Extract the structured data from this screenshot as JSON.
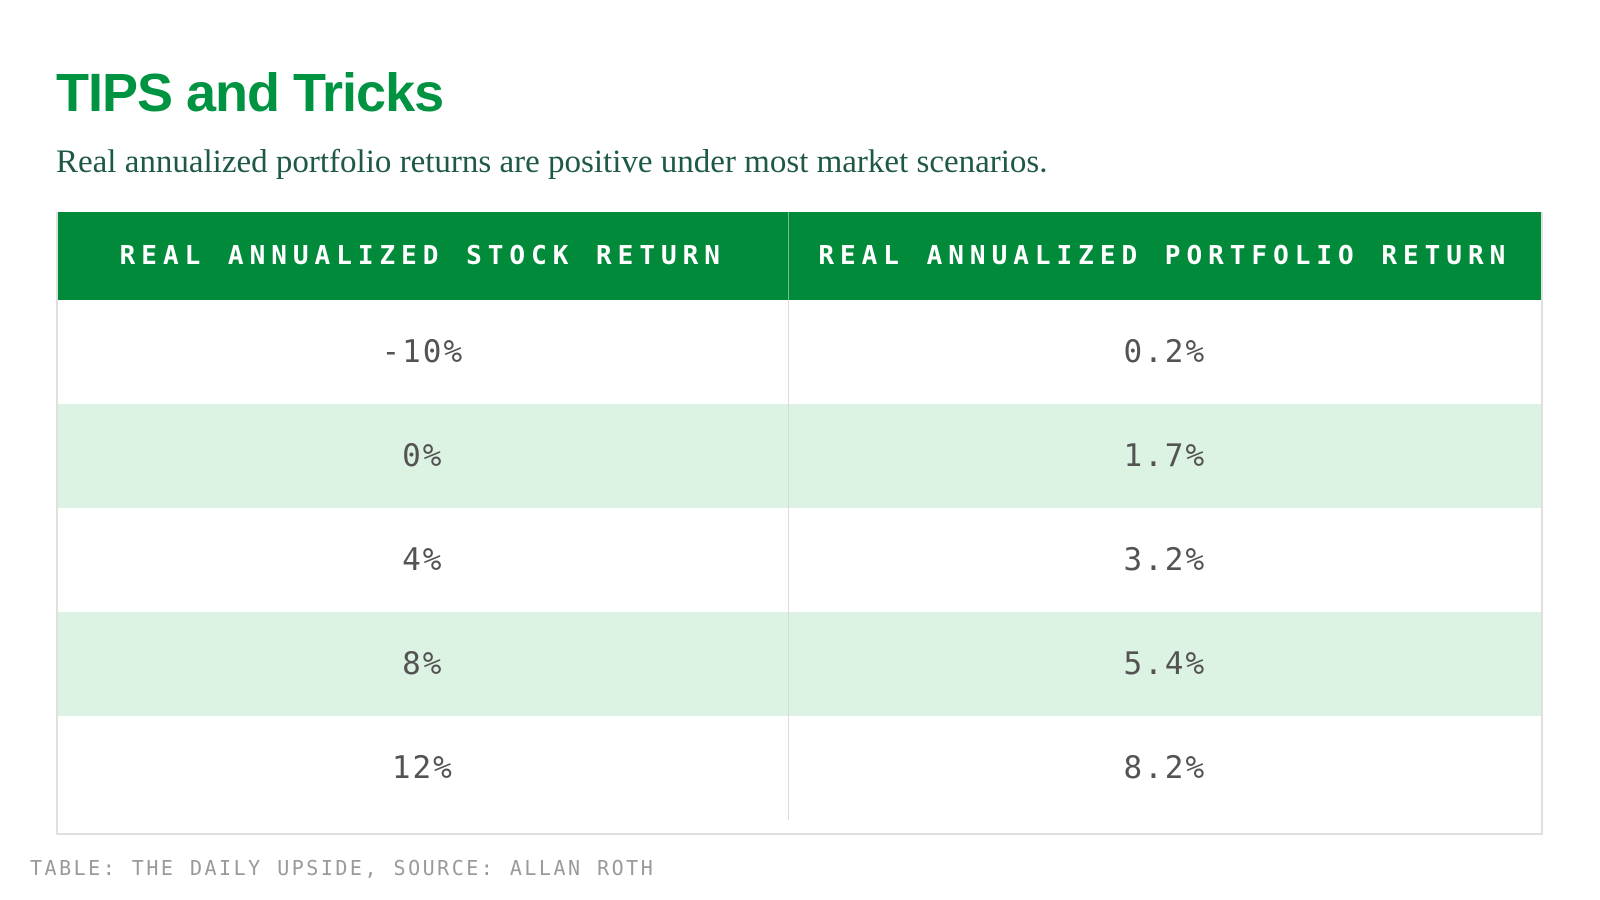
{
  "page": {
    "title": "TIPS and Tricks",
    "subtitle": "Real annualized portfolio returns are positive under most market scenarios.",
    "source_note": "TABLE: THE DAILY UPSIDE, SOURCE: ALLAN ROTH"
  },
  "colors": {
    "title_green": "#009442",
    "subtitle_green": "#1E5943",
    "header_green": "#008A39",
    "row_alt_green": "#DCF2E3",
    "cell_text": "#535353",
    "border_gray": "#E0E0E0",
    "divider_gray": "#DBDBDB",
    "footer_gray": "#9A9A9A"
  },
  "chart_data": {
    "type": "table",
    "title": "TIPS and Tricks",
    "subtitle": "Real annualized portfolio returns are positive under most market scenarios.",
    "columns": [
      "REAL ANNUALIZED STOCK RETURN",
      "REAL ANNUALIZED PORTFOLIO RETURN"
    ],
    "rows": [
      [
        "-10%",
        "0.2%"
      ],
      [
        "0%",
        "1.7%"
      ],
      [
        "4%",
        "3.2%"
      ],
      [
        "8%",
        "5.4%"
      ],
      [
        "12%",
        "8.2%"
      ]
    ],
    "row_striping": "alternating white and light green, starting white",
    "source": "TABLE: THE DAILY UPSIDE, SOURCE: ALLAN ROTH"
  }
}
